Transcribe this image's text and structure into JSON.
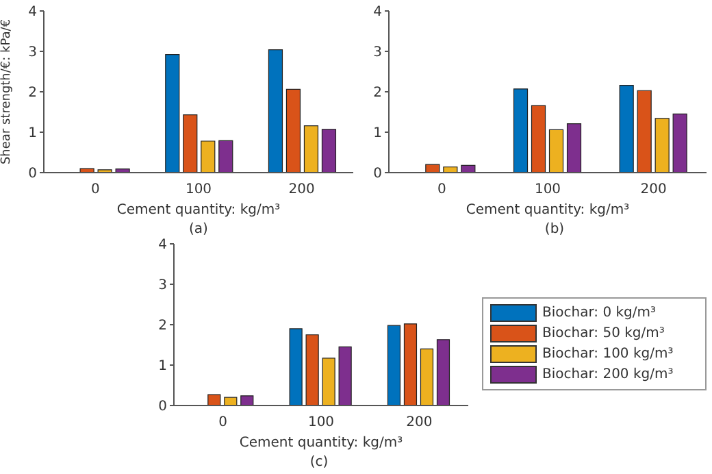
{
  "chart_data": [
    {
      "type": "bar",
      "xlabel": "Cement quantity: kg/m³",
      "ylabel": "Shear strength/€: kPa/€",
      "categories": [
        "0",
        "100",
        "200"
      ],
      "ylim": [
        0,
        4
      ],
      "yticks": [
        0,
        1,
        2,
        3,
        4
      ],
      "annotations": [
        "(a)"
      ],
      "series": [
        {
          "color": "#0072bd",
          "values": [
            0,
            2.92,
            3.04
          ]
        },
        {
          "color": "#d95319",
          "values": [
            0.1,
            1.43,
            2.06
          ]
        },
        {
          "color": "#edb120",
          "values": [
            0.07,
            0.78,
            1.16
          ]
        },
        {
          "color": "#7e2f8e",
          "values": [
            0.09,
            0.79,
            1.07
          ]
        }
      ]
    },
    {
      "type": "bar",
      "xlabel": "Cement quantity: kg/m³",
      "categories": [
        "0",
        "100",
        "200"
      ],
      "ylim": [
        0,
        4
      ],
      "yticks": [
        0,
        1,
        2,
        3,
        4
      ],
      "annotations": [
        "(b)"
      ],
      "series": [
        {
          "color": "#0072bd",
          "values": [
            0,
            2.07,
            2.16
          ]
        },
        {
          "color": "#d95319",
          "values": [
            0.2,
            1.66,
            2.03
          ]
        },
        {
          "color": "#edb120",
          "values": [
            0.14,
            1.06,
            1.34
          ]
        },
        {
          "color": "#7e2f8e",
          "values": [
            0.18,
            1.21,
            1.45
          ]
        }
      ]
    },
    {
      "type": "bar",
      "xlabel": "Cement quantity: kg/m³",
      "categories": [
        "0",
        "100",
        "200"
      ],
      "ylim": [
        0,
        4
      ],
      "yticks": [
        0,
        1,
        2,
        3,
        4
      ],
      "annotations": [
        "(c)"
      ],
      "legend": "right",
      "series": [
        {
          "name": "Biochar: 0 kg/m³",
          "color": "#0072bd",
          "values": [
            0,
            1.9,
            1.98
          ]
        },
        {
          "name": "Biochar: 50 kg/m³",
          "color": "#d95319",
          "values": [
            0.27,
            1.75,
            2.02
          ]
        },
        {
          "name": "Biochar: 100 kg/m³",
          "color": "#edb120",
          "values": [
            0.2,
            1.17,
            1.4
          ]
        },
        {
          "name": "Biochar: 200 kg/m³",
          "color": "#7e2f8e",
          "values": [
            0.24,
            1.45,
            1.63
          ]
        }
      ]
    }
  ]
}
